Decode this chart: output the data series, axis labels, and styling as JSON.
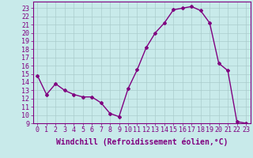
{
  "x": [
    0,
    1,
    2,
    3,
    4,
    5,
    6,
    7,
    8,
    9,
    10,
    11,
    12,
    13,
    14,
    15,
    16,
    17,
    18,
    19,
    20,
    21,
    22,
    23
  ],
  "y": [
    14.8,
    12.5,
    13.8,
    13.0,
    12.5,
    12.2,
    12.2,
    11.5,
    10.2,
    9.8,
    13.2,
    15.5,
    18.2,
    20.0,
    21.2,
    22.8,
    23.0,
    23.2,
    22.7,
    21.2,
    16.3,
    15.4,
    9.2,
    9.0
  ],
  "line_color": "#800080",
  "marker": "D",
  "marker_size": 2,
  "bg_color": "#c8eaea",
  "grid_color": "#aacccc",
  "xlabel": "Windchill (Refroidissement éolien,°C)",
  "label_color": "#800080",
  "xlabel_fontsize": 7,
  "tick_fontsize": 6,
  "xlim": [
    -0.5,
    23.5
  ],
  "ylim": [
    9,
    23.8
  ],
  "yticks": [
    9,
    10,
    11,
    12,
    13,
    14,
    15,
    16,
    17,
    18,
    19,
    20,
    21,
    22,
    23
  ],
  "xticks": [
    0,
    1,
    2,
    3,
    4,
    5,
    6,
    7,
    8,
    9,
    10,
    11,
    12,
    13,
    14,
    15,
    16,
    17,
    18,
    19,
    20,
    21,
    22,
    23
  ],
  "spine_color": "#800080",
  "linewidth": 1.0
}
